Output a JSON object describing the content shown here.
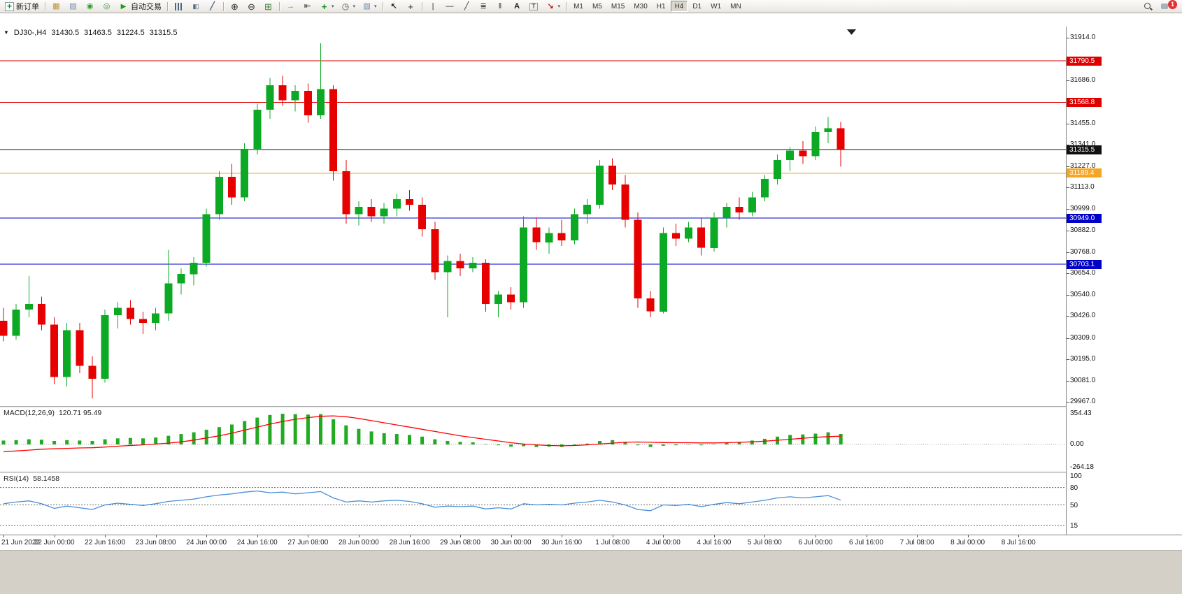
{
  "toolbar": {
    "items": [
      {
        "kind": "button",
        "name": "new-order",
        "label": "新订单"
      },
      {
        "kind": "sep"
      },
      {
        "kind": "icon",
        "name": "new-chart"
      },
      {
        "kind": "icon",
        "name": "profiles"
      },
      {
        "kind": "icon",
        "name": "market-watch"
      },
      {
        "kind": "icon",
        "name": "navigator"
      },
      {
        "kind": "button",
        "name": "autotrading",
        "label": "自动交易"
      },
      {
        "kind": "sep"
      },
      {
        "kind": "icon",
        "name": "bar-chart"
      },
      {
        "kind": "icon",
        "name": "candlestick-chart"
      },
      {
        "kind": "icon",
        "name": "line-chart"
      },
      {
        "kind": "sep"
      },
      {
        "kind": "icon",
        "name": "zoom-in"
      },
      {
        "kind": "icon",
        "name": "zoom-out"
      },
      {
        "kind": "icon",
        "name": "tile-windows"
      },
      {
        "kind": "sep"
      },
      {
        "kind": "icon",
        "name": "auto-scroll"
      },
      {
        "kind": "icon",
        "name": "chart-shift"
      },
      {
        "kind": "icon",
        "name": "indicators",
        "dropdown": true
      },
      {
        "kind": "icon",
        "name": "periods",
        "dropdown": true
      },
      {
        "kind": "icon",
        "name": "templates",
        "dropdown": true
      },
      {
        "kind": "sep"
      },
      {
        "kind": "icon",
        "name": "cursor"
      },
      {
        "kind": "icon",
        "name": "crosshair"
      },
      {
        "kind": "sep"
      },
      {
        "kind": "icon",
        "name": "vertical-line"
      },
      {
        "kind": "icon",
        "name": "horizontal-line"
      },
      {
        "kind": "icon",
        "name": "trendline"
      },
      {
        "kind": "icon",
        "name": "fibonacci"
      },
      {
        "kind": "icon",
        "name": "cycle-lines"
      },
      {
        "kind": "icon",
        "name": "text"
      },
      {
        "kind": "icon",
        "name": "text-label"
      },
      {
        "kind": "icon",
        "name": "arrows",
        "dropdown": true
      },
      {
        "kind": "sep"
      },
      {
        "kind": "timeframes"
      },
      {
        "kind": "spacer"
      },
      {
        "kind": "icon",
        "name": "search"
      },
      {
        "kind": "icon",
        "name": "notifications",
        "badge": "1"
      }
    ],
    "timeframes": [
      "M1",
      "M5",
      "M15",
      "M30",
      "H1",
      "H4",
      "D1",
      "W1",
      "MN"
    ],
    "active_timeframe": "H4"
  },
  "chart": {
    "symbol_label": "DJ30-,H4",
    "open": "31430.5",
    "high": "31463.5",
    "low": "31224.5",
    "close": "31315.5"
  },
  "indicators": {
    "macd": {
      "label": "MACD(12,26,9)",
      "values": "120.71 95.49"
    },
    "rsi": {
      "label": "RSI(14)",
      "value": "58.1458"
    }
  },
  "colors": {
    "bull": "#0caa24",
    "bear": "#e60000",
    "macd_hist": "#22aa22",
    "macd_signal": "#ff0000",
    "rsi_line": "#4a90d9",
    "level_red": "#e00000",
    "level_orange": "#f5a623",
    "level_blue": "#0000c8",
    "current_price": "#111111"
  },
  "chart_data": {
    "type": "candlestick",
    "symbol": "DJ30-",
    "period": "H4",
    "current_ohlc": {
      "open": 31430.5,
      "high": 31463.5,
      "low": 31224.5,
      "close": 31315.5
    },
    "price_axis": {
      "min": 29967.0,
      "max": 31914.0,
      "tick_labels": [
        "31914.0",
        "31686.0",
        "31455.0",
        "31341.0",
        "31227.0",
        "31113.0",
        "30999.0",
        "30882.0",
        "30768.0",
        "30654.0",
        "30540.0",
        "30426.0",
        "30309.0",
        "30195.0",
        "30081.0",
        "29967.0"
      ]
    },
    "levels": [
      {
        "label": "31790.5",
        "price": 31790.5,
        "color": "level_red"
      },
      {
        "label": "31568.8",
        "price": 31568.8,
        "color": "level_red"
      },
      {
        "label": "31315.5",
        "price": 31315.5,
        "color": "current_price"
      },
      {
        "label": "31189.4",
        "price": 31189.4,
        "color": "level_orange"
      },
      {
        "label": "30949.0",
        "price": 30949.0,
        "color": "level_blue"
      },
      {
        "label": "30703.1",
        "price": 30703.1,
        "color": "level_blue"
      }
    ],
    "time_labels": [
      "21 Jun 2022",
      "22 Jun 00:00",
      "22 Jun 16:00",
      "23 Jun 08:00",
      "24 Jun 00:00",
      "24 Jun 16:00",
      "27 Jun 08:00",
      "28 Jun 00:00",
      "28 Jun 16:00",
      "29 Jun 08:00",
      "30 Jun 00:00",
      "30 Jun 16:00",
      "1 Jul 08:00",
      "4 Jul 00:00",
      "4 Jul 16:00",
      "5 Jul 08:00",
      "6 Jul 00:00",
      "6 Jul 16:00",
      "7 Jul 08:00",
      "8 Jul 00:00",
      "8 Jul 16:00"
    ],
    "candles": [
      [
        30400,
        30470,
        30290,
        30320
      ],
      [
        30320,
        30490,
        30300,
        30460
      ],
      [
        30460,
        30640,
        30420,
        30490
      ],
      [
        30490,
        30530,
        30350,
        30380
      ],
      [
        30380,
        30420,
        30060,
        30100
      ],
      [
        30100,
        30390,
        30050,
        30350
      ],
      [
        30350,
        30390,
        30120,
        30160
      ],
      [
        30160,
        30210,
        29985,
        30090
      ],
      [
        30090,
        30460,
        30070,
        30430
      ],
      [
        30430,
        30500,
        30360,
        30470
      ],
      [
        30470,
        30510,
        30380,
        30410
      ],
      [
        30410,
        30450,
        30330,
        30390
      ],
      [
        30390,
        30470,
        30350,
        30440
      ],
      [
        30440,
        30780,
        30400,
        30600
      ],
      [
        30600,
        30680,
        30540,
        30650
      ],
      [
        30650,
        30740,
        30590,
        30710
      ],
      [
        30710,
        31000,
        30690,
        30970
      ],
      [
        30970,
        31200,
        30940,
        31170
      ],
      [
        31170,
        31240,
        31020,
        31060
      ],
      [
        31060,
        31350,
        31040,
        31320
      ],
      [
        31320,
        31560,
        31290,
        31530
      ],
      [
        31530,
        31700,
        31480,
        31660
      ],
      [
        31660,
        31710,
        31550,
        31580
      ],
      [
        31580,
        31660,
        31520,
        31630
      ],
      [
        31630,
        31670,
        31460,
        31500
      ],
      [
        31500,
        31884,
        31480,
        31640
      ],
      [
        31640,
        31660,
        31150,
        31200
      ],
      [
        31200,
        31260,
        30920,
        30970
      ],
      [
        30970,
        31040,
        30910,
        31010
      ],
      [
        31010,
        31050,
        30930,
        30960
      ],
      [
        30960,
        31030,
        30920,
        31000
      ],
      [
        31000,
        31080,
        30960,
        31050
      ],
      [
        31050,
        31100,
        30990,
        31020
      ],
      [
        31020,
        31060,
        30850,
        30890
      ],
      [
        30890,
        30930,
        30620,
        30660
      ],
      [
        30660,
        30750,
        30420,
        30720
      ],
      [
        30720,
        30760,
        30640,
        30680
      ],
      [
        30680,
        30740,
        30660,
        30710
      ],
      [
        30710,
        30730,
        30450,
        30490
      ],
      [
        30490,
        30560,
        30420,
        30540
      ],
      [
        30540,
        30580,
        30460,
        30500
      ],
      [
        30500,
        30960,
        30470,
        30900
      ],
      [
        30900,
        30950,
        30780,
        30820
      ],
      [
        30820,
        30900,
        30760,
        30870
      ],
      [
        30870,
        30940,
        30800,
        30830
      ],
      [
        30830,
        31000,
        30810,
        30970
      ],
      [
        30970,
        31050,
        30920,
        31020
      ],
      [
        31020,
        31260,
        31000,
        31230
      ],
      [
        31230,
        31270,
        31100,
        31130
      ],
      [
        31130,
        31180,
        30900,
        30940
      ],
      [
        30940,
        30980,
        30470,
        30520
      ],
      [
        30520,
        30560,
        30420,
        30450
      ],
      [
        30450,
        30900,
        30440,
        30870
      ],
      [
        30870,
        30920,
        30800,
        30840
      ],
      [
        30840,
        30930,
        30820,
        30900
      ],
      [
        30900,
        30950,
        30750,
        30790
      ],
      [
        30790,
        30980,
        30770,
        30950
      ],
      [
        30950,
        31030,
        30900,
        31010
      ],
      [
        31010,
        31060,
        30940,
        30980
      ],
      [
        30980,
        31090,
        30960,
        31060
      ],
      [
        31060,
        31180,
        31040,
        31160
      ],
      [
        31160,
        31290,
        31130,
        31260
      ],
      [
        31260,
        31330,
        31200,
        31310
      ],
      [
        31310,
        31360,
        31240,
        31280
      ],
      [
        31280,
        31440,
        31260,
        31410
      ],
      [
        31410,
        31490,
        31350,
        31430.5
      ],
      [
        31430.5,
        31463.5,
        31224.5,
        31315.5
      ]
    ],
    "macd": {
      "histogram": [
        45,
        50,
        60,
        55,
        40,
        50,
        45,
        40,
        60,
        70,
        75,
        70,
        80,
        100,
        120,
        140,
        170,
        200,
        230,
        270,
        310,
        340,
        354,
        350,
        345,
        350,
        290,
        220,
        180,
        150,
        130,
        120,
        110,
        90,
        60,
        40,
        30,
        25,
        5,
        -10,
        -25,
        -20,
        -30,
        -25,
        -30,
        -15,
        10,
        40,
        50,
        30,
        -10,
        -30,
        -15,
        -10,
        0,
        -10,
        5,
        25,
        30,
        45,
        65,
        90,
        110,
        115,
        125,
        140,
        120.71
      ],
      "signal": [
        -85,
        -75,
        -65,
        -55,
        -50,
        -45,
        -40,
        -38,
        -30,
        -20,
        -12,
        -5,
        5,
        15,
        30,
        50,
        75,
        100,
        130,
        165,
        200,
        235,
        265,
        290,
        310,
        325,
        330,
        320,
        300,
        275,
        250,
        225,
        200,
        175,
        150,
        125,
        100,
        80,
        60,
        40,
        20,
        5,
        -5,
        -12,
        -15,
        -12,
        -5,
        5,
        15,
        25,
        28,
        25,
        22,
        20,
        20,
        18,
        18,
        20,
        25,
        30,
        38,
        48,
        60,
        72,
        82,
        90,
        95.49
      ],
      "scale_labels": [
        "354.43",
        "0.00",
        "-264.18"
      ]
    },
    "rsi": {
      "values": [
        52,
        55,
        57,
        52,
        44,
        48,
        45,
        42,
        50,
        53,
        51,
        49,
        52,
        56,
        58,
        60,
        64,
        67,
        69,
        72,
        74,
        71,
        72,
        69,
        71,
        73,
        62,
        55,
        57,
        55,
        57,
        58,
        56,
        52,
        46,
        48,
        47,
        48,
        43,
        45,
        43,
        52,
        50,
        51,
        50,
        53,
        55,
        58,
        55,
        50,
        42,
        40,
        50,
        49,
        51,
        47,
        51,
        54,
        52,
        55,
        58,
        62,
        64,
        62,
        64,
        66,
        58.15
      ],
      "levels": [
        80,
        50,
        15
      ],
      "scale_labels": [
        "100",
        "80",
        "50",
        "15"
      ]
    }
  }
}
